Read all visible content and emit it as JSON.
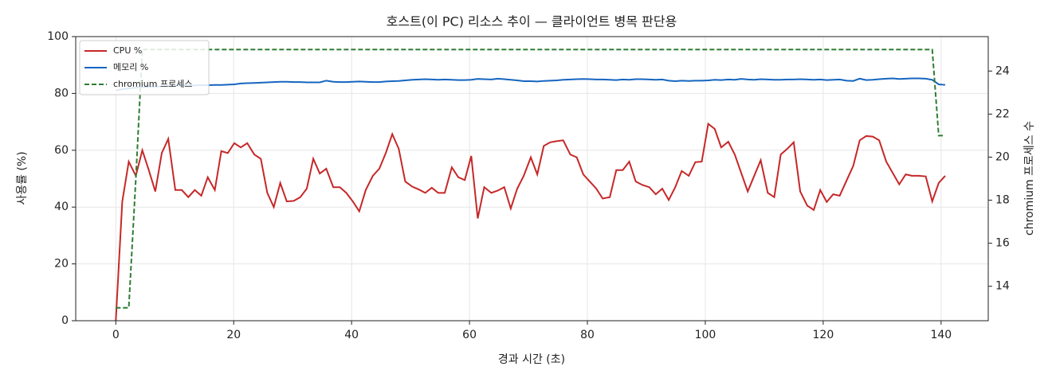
{
  "chart_data": {
    "type": "line",
    "title": "호스트(이 PC) 리소스 추이 — 클라이언트 병목 판단용",
    "xlabel": "경과 시간 (초)",
    "ylabel": "사용률 (%)",
    "y2label": "chromium 프로세스 수",
    "x": [
      0.0,
      1.1,
      2.2,
      3.4,
      4.5,
      5.6,
      6.7,
      7.8,
      8.9,
      10.1,
      11.2,
      12.3,
      13.4,
      14.5,
      15.6,
      16.8,
      17.9,
      19.0,
      20.1,
      21.2,
      22.3,
      23.5,
      24.6,
      25.7,
      26.8,
      27.9,
      29.0,
      30.2,
      31.3,
      32.4,
      33.5,
      34.6,
      35.7,
      36.9,
      38.0,
      39.1,
      40.2,
      41.3,
      42.4,
      43.6,
      44.7,
      45.8,
      46.9,
      48.0,
      49.1,
      50.3,
      51.4,
      52.5,
      53.6,
      54.7,
      55.8,
      57.0,
      58.1,
      59.2,
      60.3,
      61.4,
      62.5,
      63.7,
      64.8,
      65.9,
      67.0,
      68.1,
      69.2,
      70.4,
      71.5,
      72.6,
      73.7,
      74.8,
      75.9,
      77.1,
      78.2,
      79.3,
      80.4,
      81.5,
      82.6,
      83.8,
      84.9,
      86.0,
      87.1,
      88.2,
      89.3,
      90.5,
      91.6,
      92.7,
      93.8,
      94.9,
      96.0,
      97.2,
      98.3,
      99.4,
      100.5,
      101.6,
      102.7,
      103.9,
      105.0,
      106.1,
      107.2,
      108.3,
      109.4,
      110.6,
      111.7,
      112.8,
      113.9,
      115.0,
      116.1,
      117.3,
      118.4,
      119.5,
      120.6,
      121.7,
      122.8,
      124.0,
      125.1,
      126.2,
      127.3,
      128.4,
      129.5,
      130.7,
      131.8,
      132.9,
      134.0,
      135.1,
      136.2,
      137.4,
      138.5,
      139.6,
      140.7
    ],
    "series": [
      {
        "name": "CPU %",
        "color": "#c62828",
        "linestyle": "solid",
        "values": [
          0,
          42,
          56,
          51,
          60,
          53,
          45.5,
          59,
          64,
          46,
          46,
          43.5,
          46,
          44,
          50.5,
          46,
          59.7,
          59,
          62.5,
          61,
          62.5,
          58.5,
          57,
          45,
          40,
          48.5,
          42,
          42.2,
          43.5,
          46.5,
          57,
          51.8,
          53.5,
          47,
          47,
          45,
          42,
          38.5,
          46,
          51,
          53.5,
          59,
          65.7,
          60.5,
          49,
          47.2,
          46.2,
          45,
          46.8,
          45,
          45,
          54,
          50.5,
          49.5,
          58,
          36,
          47,
          45,
          45.8,
          47,
          39.5,
          46.5,
          51,
          57.5,
          51.5,
          61.5,
          62.8,
          63.2,
          63.5,
          58.5,
          57.5,
          51.5,
          49,
          46.5,
          43,
          43.5,
          53,
          53,
          56,
          49,
          47.8,
          47,
          44.5,
          46.5,
          42.5,
          47,
          52.7,
          51,
          55.8,
          56,
          69.3,
          67.5,
          61,
          63,
          58.5,
          52,
          45.5,
          51,
          56.5,
          45,
          43.5,
          58.5,
          60.5,
          62.8,
          45.5,
          40.5,
          39,
          46,
          41.8,
          44.5,
          44,
          49.5,
          54.5,
          63.5,
          65,
          64.8,
          63.5,
          56,
          52,
          48,
          51.5,
          51,
          51,
          50.8,
          42,
          48.5,
          51
        ]
      },
      {
        "name": "메모리 %",
        "color": "#1565c0",
        "linestyle": "solid",
        "values": [
          81,
          81.5,
          81.8,
          82,
          82.2,
          82.3,
          82.4,
          82.5,
          82.6,
          82.7,
          82.7,
          82.8,
          82.8,
          82.9,
          82.9,
          83,
          83,
          83.1,
          83.2,
          83.5,
          83.6,
          83.7,
          83.8,
          83.9,
          84,
          84.1,
          84.1,
          84,
          84,
          83.9,
          83.9,
          83.9,
          84.5,
          84.1,
          84,
          84,
          84.1,
          84.2,
          84.1,
          84,
          84,
          84.2,
          84.3,
          84.4,
          84.6,
          84.8,
          84.9,
          85,
          84.9,
          84.8,
          84.9,
          84.8,
          84.7,
          84.7,
          84.8,
          85.1,
          85,
          84.9,
          85.2,
          85,
          84.8,
          84.6,
          84.3,
          84.3,
          84.2,
          84.4,
          84.5,
          84.6,
          84.8,
          84.9,
          85,
          85.1,
          85,
          84.9,
          84.9,
          84.8,
          84.7,
          84.9,
          84.8,
          85,
          85,
          84.9,
          84.8,
          84.9,
          84.5,
          84.3,
          84.5,
          84.4,
          84.5,
          84.5,
          84.6,
          84.8,
          84.7,
          84.9,
          84.8,
          85.1,
          84.9,
          84.8,
          85,
          84.9,
          84.8,
          84.8,
          84.9,
          84.9,
          85,
          84.9,
          84.8,
          84.9,
          84.7,
          84.8,
          84.9,
          84.5,
          84.4,
          85.2,
          84.7,
          84.8,
          85,
          85.2,
          85.3,
          85.1,
          85.2,
          85.3,
          85.3,
          85.2,
          84.8,
          83.2,
          83
        ]
      },
      {
        "name": "chromium 프로세스",
        "color": "#2e7d32",
        "linestyle": "dashed",
        "axis": "y2",
        "values": [
          13,
          13,
          13,
          19,
          25,
          25,
          25,
          25,
          25,
          25,
          25,
          25,
          25,
          25,
          25,
          25,
          25,
          25,
          25,
          25,
          25,
          25,
          25,
          25,
          25,
          25,
          25,
          25,
          25,
          25,
          25,
          25,
          25,
          25,
          25,
          25,
          25,
          25,
          25,
          25,
          25,
          25,
          25,
          25,
          25,
          25,
          25,
          25,
          25,
          25,
          25,
          25,
          25,
          25,
          25,
          25,
          25,
          25,
          25,
          25,
          25,
          25,
          25,
          25,
          25,
          25,
          25,
          25,
          25,
          25,
          25,
          25,
          25,
          25,
          25,
          25,
          25,
          25,
          25,
          25,
          25,
          25,
          25,
          25,
          25,
          25,
          25,
          25,
          25,
          25,
          25,
          25,
          25,
          25,
          25,
          25,
          25,
          25,
          25,
          25,
          25,
          25,
          25,
          25,
          25,
          25,
          25,
          25,
          25,
          25,
          25,
          25,
          25,
          25,
          25,
          25,
          25,
          25,
          25,
          25,
          25,
          25,
          25,
          25,
          25,
          21,
          21
        ]
      }
    ],
    "xlim": [
      -6.8,
      148
    ],
    "xticks": [
      0,
      20,
      40,
      60,
      80,
      100,
      120,
      140
    ],
    "ylim": [
      0,
      100
    ],
    "yticks": [
      0,
      20,
      40,
      60,
      80,
      100
    ],
    "y2lim": [
      12.4,
      25.6
    ],
    "y2ticks": [
      14,
      16,
      18,
      20,
      22,
      24
    ],
    "grid": true,
    "legend": "upper-left"
  }
}
